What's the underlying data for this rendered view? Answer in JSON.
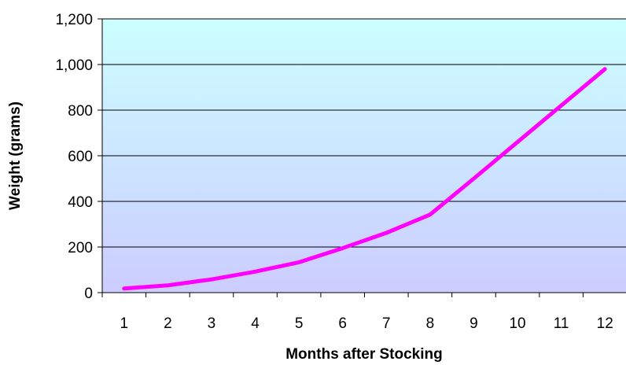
{
  "chart_data": {
    "type": "line",
    "x": [
      1,
      2,
      3,
      4,
      5,
      6,
      7,
      8,
      9,
      10,
      11,
      12
    ],
    "series": [
      {
        "values": [
          18,
          32,
          58,
          92,
          133,
          195,
          262,
          342,
          500,
          660,
          820,
          980
        ],
        "color": "#ff00ff"
      }
    ],
    "title": "",
    "xlabel": "Months after Stocking",
    "ylabel": "Weight (grams)",
    "ylim": [
      0,
      1200
    ],
    "yticks": [
      "0",
      "200",
      "400",
      "600",
      "800",
      "1,000",
      "1,200"
    ],
    "xticks": [
      "1",
      "2",
      "3",
      "4",
      "5",
      "6",
      "7",
      "8",
      "9",
      "10",
      "11",
      "12"
    ],
    "grid": true,
    "legend": "none",
    "background_gradient": [
      "#ccffff",
      "#ccccff"
    ]
  }
}
